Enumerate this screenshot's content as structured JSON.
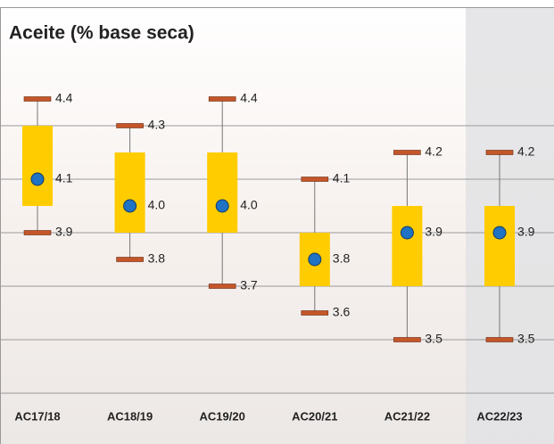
{
  "chart_data": {
    "type": "box",
    "title": "Aceite (% base seca)",
    "categories": [
      "AC17/18",
      "AC18/19",
      "AC19/20",
      "AC20/21",
      "AC21/22",
      "AC22/23"
    ],
    "max": {
      "values": [
        4.4,
        4.3,
        4.4,
        4.1,
        4.2,
        4.2
      ],
      "value_labels": [
        "4.4",
        "4.3",
        "4.4",
        "4.1",
        "4.2",
        "4.2"
      ]
    },
    "q3": {
      "values": [
        4.3,
        4.2,
        4.2,
        3.9,
        4.0,
        4.0
      ]
    },
    "mean": {
      "values": [
        4.1,
        4.0,
        4.0,
        3.8,
        3.9,
        3.9
      ],
      "value_labels": [
        "4.1",
        "4.0",
        "4.0",
        "3.8",
        "3.9",
        "3.9"
      ]
    },
    "q1": {
      "values": [
        4.0,
        3.9,
        3.9,
        3.7,
        3.7,
        3.7
      ]
    },
    "min": {
      "values": [
        3.9,
        3.8,
        3.7,
        3.6,
        3.5,
        3.5
      ],
      "value_labels": [
        "3.9",
        "3.8",
        "3.7",
        "3.6",
        "3.5",
        "3.5"
      ]
    },
    "box_color": "#ffcc00",
    "cap_color": "#c4562a",
    "mean_color": "#1f72c4",
    "ylim": [
      3.3,
      4.5
    ],
    "yticks": [
      3.3,
      3.5,
      3.7,
      3.9,
      4.1,
      4.3
    ],
    "grid": true
  }
}
